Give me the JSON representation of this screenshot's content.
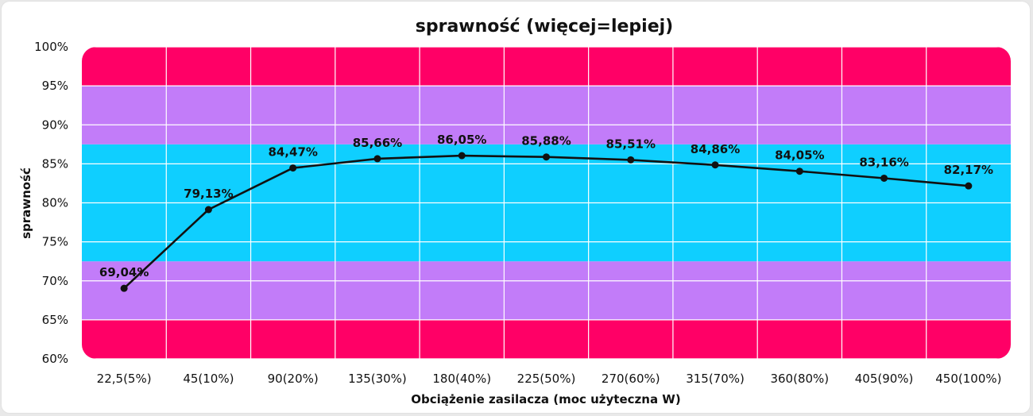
{
  "chart_data": {
    "type": "line",
    "title": "sprawność (więcej=lepiej)",
    "xlabel": "Obciążenie zasilacza (moc użyteczna W)",
    "ylabel": "sprawność",
    "categories": [
      "22,5(5%)",
      "45(10%)",
      "90(20%)",
      "135(30%)",
      "180(40%)",
      "225(50%)",
      "270(60%)",
      "315(70%)",
      "360(80%)",
      "405(90%)",
      "450(100%)"
    ],
    "values": [
      69.04,
      79.13,
      84.47,
      85.66,
      86.05,
      85.88,
      85.51,
      84.86,
      84.05,
      83.16,
      82.17
    ],
    "data_labels": [
      "69,04%",
      "79,13%",
      "84,47%",
      "85,66%",
      "86,05%",
      "85,88%",
      "85,51%",
      "84,86%",
      "84,05%",
      "83,16%",
      "82,17%"
    ],
    "ylim": [
      60,
      100
    ],
    "yticks": [
      60,
      65,
      70,
      75,
      80,
      85,
      90,
      95,
      100
    ],
    "ytick_labels": [
      "60%",
      "65%",
      "70%",
      "75%",
      "80%",
      "85%",
      "90%",
      "95%",
      "100%"
    ],
    "grid": true,
    "legend": "none",
    "line_color": "#111111",
    "bands": [
      {
        "from": 60,
        "to": 65,
        "color": "#ff0066"
      },
      {
        "from": 65,
        "to": 72.5,
        "color": "#c27cf9"
      },
      {
        "from": 72.5,
        "to": 87.5,
        "color": "#0fcfff"
      },
      {
        "from": 87.5,
        "to": 95,
        "color": "#c27cf9"
      },
      {
        "from": 95,
        "to": 100,
        "color": "#ff0066"
      }
    ]
  }
}
